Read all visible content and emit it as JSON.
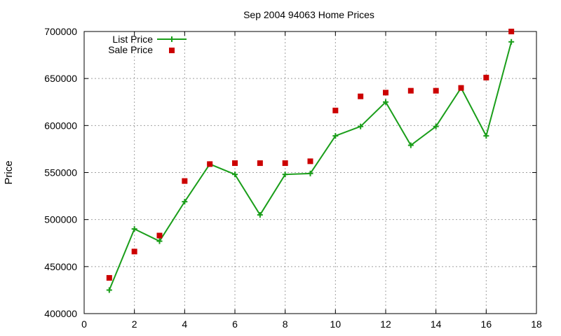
{
  "chart_data": {
    "type": "line",
    "title": "Sep 2004 94063 Home Prices",
    "xlabel": "",
    "ylabel": "Price",
    "xlim": [
      0,
      18
    ],
    "ylim": [
      400000,
      700000
    ],
    "x_ticks": [
      "0",
      "2",
      "4",
      "6",
      "8",
      "10",
      "12",
      "14",
      "16",
      "18"
    ],
    "y_ticks": [
      "400000",
      "450000",
      "500000",
      "550000",
      "600000",
      "650000",
      "700000"
    ],
    "grid": true,
    "legend_position": "top-left",
    "series": [
      {
        "name": "List Price",
        "style": "line-with-plus-markers",
        "color": "#1a9e1a",
        "x": [
          1,
          2,
          3,
          4,
          5,
          6,
          7,
          8,
          9,
          10,
          11,
          12,
          13,
          14,
          15,
          16,
          17
        ],
        "values": [
          425000,
          490000,
          477000,
          519000,
          559000,
          548000,
          505000,
          548000,
          549000,
          589000,
          599000,
          625000,
          579000,
          599000,
          640000,
          589000,
          689000
        ]
      },
      {
        "name": "Sale Price",
        "style": "square-markers",
        "color": "#cc0000",
        "x": [
          1,
          2,
          3,
          4,
          5,
          6,
          7,
          8,
          9,
          10,
          11,
          12,
          13,
          14,
          15,
          16,
          17
        ],
        "values": [
          438000,
          466000,
          483000,
          541000,
          559000,
          560000,
          560000,
          560000,
          562000,
          616000,
          631000,
          635000,
          637000,
          637000,
          640000,
          651000,
          700000
        ]
      }
    ]
  }
}
